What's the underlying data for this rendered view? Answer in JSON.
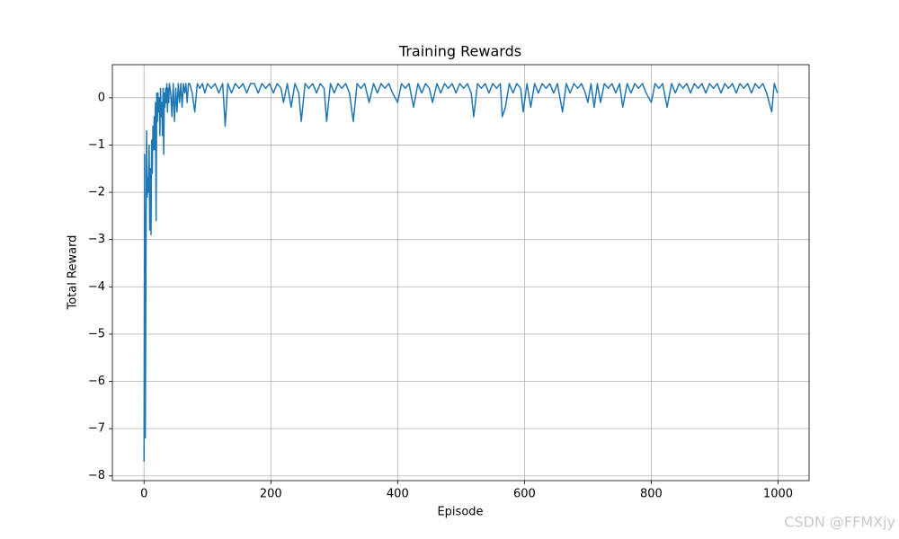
{
  "chart_data": {
    "type": "line",
    "title": "Training Rewards",
    "xlabel": "Episode",
    "ylabel": "Total Reward",
    "watermark": "CSDN @FFMXjy",
    "grid": true,
    "xlim": [
      -49.95,
      1048.95
    ],
    "ylim": [
      -8.1,
      0.7
    ],
    "xticks": [
      0,
      200,
      400,
      600,
      800,
      1000
    ],
    "yticks": [
      {
        "value": -8,
        "label": "−8"
      },
      {
        "value": -7,
        "label": "−7"
      },
      {
        "value": -6,
        "label": "−6"
      },
      {
        "value": -5,
        "label": "−5"
      },
      {
        "value": -4,
        "label": "−4"
      },
      {
        "value": -3,
        "label": "−3"
      },
      {
        "value": -2,
        "label": "−2"
      },
      {
        "value": -1,
        "label": "−1"
      },
      0
    ],
    "series": [
      {
        "color": "#1f77b4",
        "x": [
          0,
          1,
          2,
          3,
          4,
          5,
          6,
          7,
          8,
          9,
          10,
          11,
          12,
          13,
          14,
          15,
          16,
          17,
          18,
          19,
          20,
          21,
          22,
          23,
          24,
          25,
          26,
          27,
          28,
          29,
          30,
          31,
          32,
          33,
          34,
          35,
          36,
          37,
          38,
          39,
          40,
          42,
          44,
          46,
          48,
          50,
          52,
          54,
          56,
          58,
          60,
          62,
          64,
          66,
          68,
          70,
          72,
          76,
          80,
          84,
          88,
          92,
          96,
          100,
          106,
          112,
          118,
          124,
          128,
          132,
          138,
          144,
          150,
          156,
          162,
          168,
          174,
          180,
          186,
          192,
          198,
          204,
          210,
          216,
          220,
          226,
          232,
          238,
          244,
          248,
          254,
          260,
          266,
          272,
          278,
          284,
          288,
          294,
          300,
          306,
          312,
          318,
          324,
          330,
          336,
          342,
          348,
          355,
          362,
          368,
          374,
          380,
          386,
          392,
          400,
          406,
          412,
          418,
          425,
          432,
          438,
          444,
          450,
          455,
          462,
          468,
          474,
          480,
          486,
          492,
          498,
          504,
          510,
          516,
          520,
          526,
          532,
          538,
          544,
          550,
          556,
          562,
          565,
          570,
          576,
          582,
          588,
          594,
          598,
          604,
          610,
          616,
          622,
          628,
          634,
          640,
          646,
          652,
          660,
          666,
          672,
          678,
          684,
          690,
          696,
          700,
          705,
          710,
          715,
          720,
          726,
          732,
          738,
          744,
          750,
          755,
          762,
          768,
          774,
          780,
          786,
          792,
          800,
          806,
          812,
          818,
          825,
          832,
          838,
          844,
          850,
          856,
          862,
          868,
          874,
          880,
          886,
          892,
          898,
          904,
          910,
          916,
          922,
          928,
          934,
          940,
          946,
          952,
          958,
          964,
          970,
          976,
          982,
          990,
          994,
          999
        ],
        "values": [
          -7.7,
          -1.2,
          -7.2,
          -3.5,
          -0.7,
          -2.1,
          -1.7,
          -2.0,
          -1.0,
          -2.8,
          -1.5,
          -2.9,
          -0.9,
          -1.6,
          -0.6,
          -1.1,
          -0.4,
          -1.1,
          -0.1,
          -2.6,
          0.1,
          -0.5,
          0.1,
          -0.3,
          0,
          -0.8,
          0.2,
          -0.4,
          -0.1,
          -0.8,
          0.2,
          -1.2,
          0.1,
          -0.2,
          0.2,
          -0.1,
          0.3,
          -0.3,
          0.2,
          -0.1,
          0.3,
          0.1,
          -0.4,
          0.3,
          -0.5,
          0.2,
          -0.3,
          0.3,
          -0.1,
          0.3,
          -0.2,
          0.3,
          0.1,
          0.3,
          -0.1,
          0.3,
          0.3,
          0.1,
          -0.3,
          0.3,
          0.2,
          0.3,
          0.1,
          0.3,
          0.2,
          0.3,
          0.1,
          0.3,
          -0.6,
          0.3,
          0.1,
          0.3,
          0.2,
          0.3,
          0.1,
          0.3,
          0.3,
          0.1,
          0.3,
          0.2,
          0.3,
          0.1,
          0.3,
          0.2,
          -0.1,
          0.3,
          -0.2,
          0.3,
          0.1,
          -0.5,
          0.3,
          0.2,
          0.3,
          0.1,
          0.3,
          0.2,
          -0.5,
          0.3,
          0.1,
          0.3,
          0.2,
          0.3,
          0.1,
          -0.5,
          0.3,
          0.2,
          0.3,
          -0.1,
          0.3,
          0.1,
          0.3,
          0.2,
          0.3,
          0.1,
          -0.1,
          0.3,
          0.2,
          0.3,
          -0.2,
          0.3,
          0.1,
          0.3,
          0.2,
          -0.1,
          0.3,
          0.1,
          0.3,
          0.2,
          0.3,
          0.1,
          0.3,
          0.2,
          0.3,
          0.1,
          -0.4,
          0.3,
          0.2,
          0.3,
          0.1,
          0.3,
          0.2,
          0.3,
          -0.4,
          -0.2,
          0.3,
          0.1,
          0.3,
          0.2,
          -0.3,
          0.3,
          -0.2,
          0.3,
          0.1,
          0.3,
          0.2,
          0.3,
          0.1,
          0.3,
          -0.3,
          0.3,
          0.1,
          0.3,
          0.2,
          0.3,
          0.1,
          -0.1,
          0.3,
          -0.2,
          0.3,
          -0.1,
          0.3,
          0.2,
          0.3,
          0.1,
          0.3,
          -0.2,
          0.3,
          0.1,
          0.3,
          0.2,
          0.3,
          0.1,
          -0.1,
          0.3,
          0.2,
          0.3,
          -0.2,
          0.3,
          0.1,
          0.3,
          0.2,
          0.3,
          0.1,
          0.3,
          0.2,
          0.3,
          0.1,
          0.3,
          0.2,
          0.3,
          0.1,
          0.3,
          0.2,
          0.3,
          0.1,
          0.3,
          0.2,
          0.3,
          0.1,
          0.3,
          0.2,
          0.3,
          0.1,
          -0.3,
          0.3,
          0.1
        ]
      }
    ]
  }
}
